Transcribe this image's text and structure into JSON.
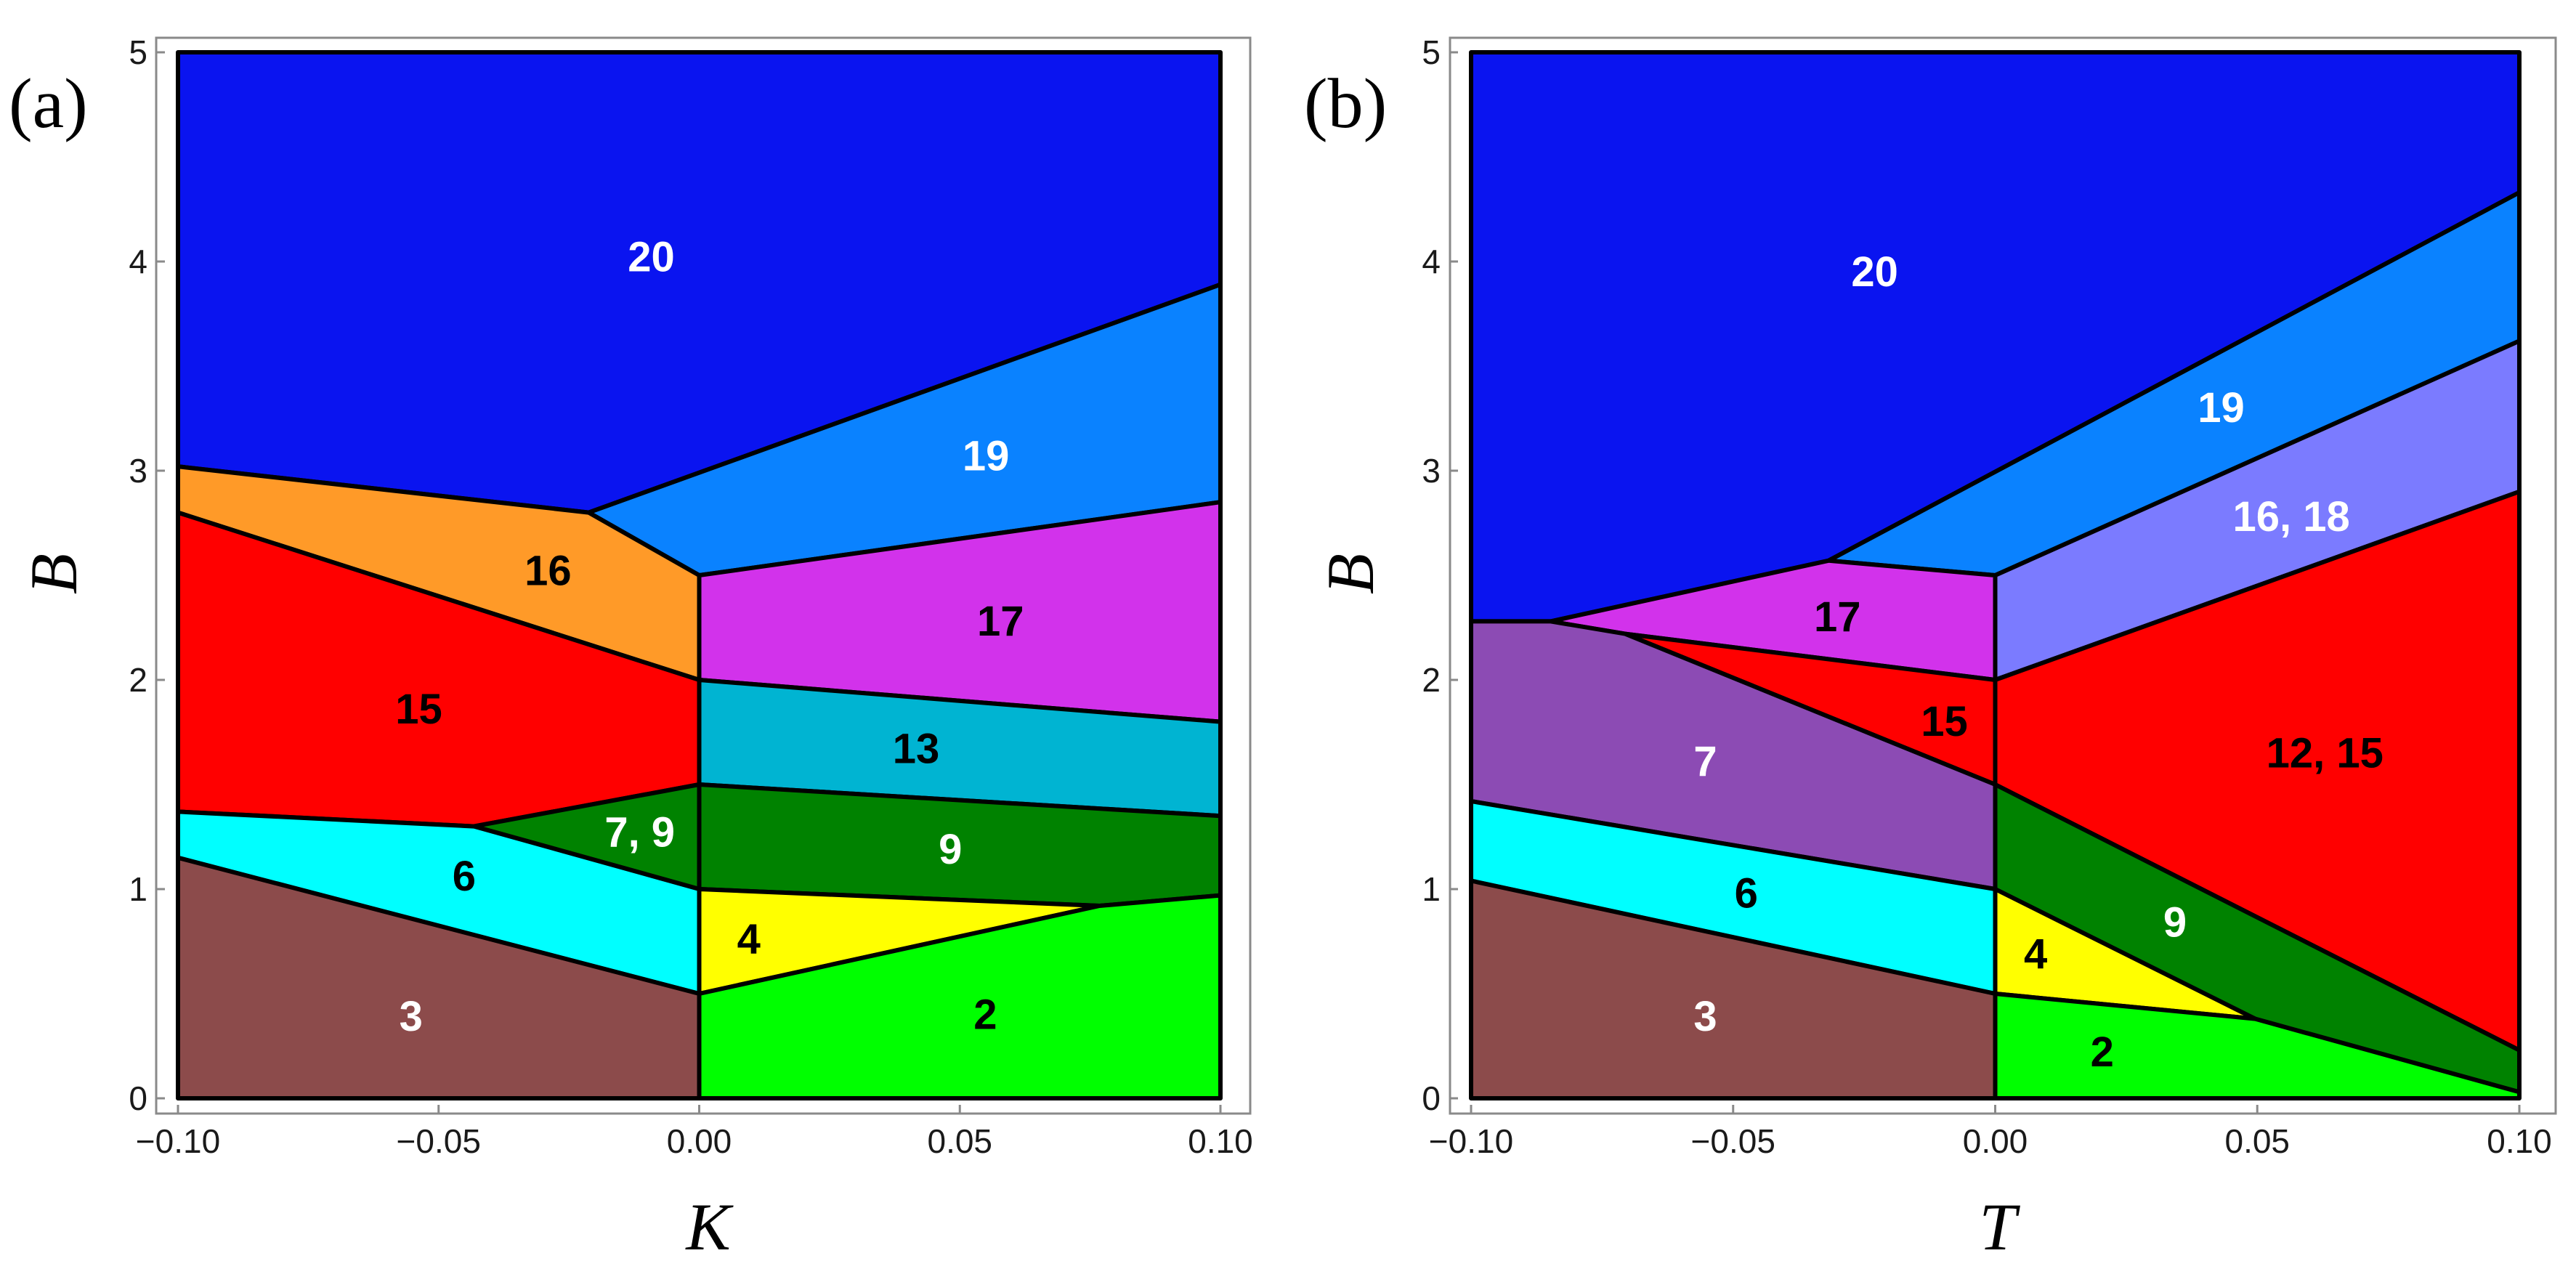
{
  "chart_data": [
    {
      "type": "phase_diagram",
      "panel_tag": "(a)",
      "xlabel": "K",
      "ylabel": "B",
      "xlim": [
        -0.1,
        0.1
      ],
      "ylim": [
        0,
        5
      ],
      "xticks": [
        -0.1,
        -0.05,
        0.0,
        0.05,
        0.1
      ],
      "xtick_labels": [
        "−0.10",
        "−0.05",
        "0.00",
        "0.05",
        "0.10"
      ],
      "yticks": [
        0,
        1,
        2,
        3,
        4,
        5
      ],
      "ytick_labels": [
        "0",
        "1",
        "2",
        "3",
        "4",
        "5"
      ],
      "regions": [
        {
          "label": "20",
          "color": "#0a14f0",
          "text_color": "#ffffff",
          "label_at": [
            -0.0092,
            4.02
          ],
          "polygon": [
            [
              -0.1,
              5
            ],
            [
              0.1,
              5
            ],
            [
              0.1,
              3.89
            ],
            [
              -0.0212,
              2.8
            ],
            [
              -0.1,
              3.02
            ]
          ]
        },
        {
          "label": "19",
          "color": "#0a82ff",
          "text_color": "#ffffff",
          "label_at": [
            0.055,
            3.07
          ],
          "polygon": [
            [
              -0.0212,
              2.8
            ],
            [
              0.1,
              3.89
            ],
            [
              0.1,
              2.85
            ],
            [
              0.0,
              2.5
            ]
          ]
        },
        {
          "label": "16",
          "color": "#ff9a28",
          "text_color": "#000000",
          "label_at": [
            -0.029,
            2.52
          ],
          "polygon": [
            [
              -0.1,
              3.02
            ],
            [
              -0.0212,
              2.8
            ],
            [
              0.0,
              2.5
            ],
            [
              0.0,
              2.0
            ],
            [
              -0.1,
              2.8
            ]
          ]
        },
        {
          "label": "17",
          "color": "#d232eb",
          "text_color": "#000000",
          "label_at": [
            0.0578,
            2.28
          ],
          "polygon": [
            [
              0.0,
              2.5
            ],
            [
              0.1,
              2.85
            ],
            [
              0.1,
              1.8
            ],
            [
              0.0,
              2.0
            ]
          ]
        },
        {
          "label": "15",
          "color": "#ff0000",
          "text_color": "#000000",
          "label_at": [
            -0.0538,
            1.86
          ],
          "polygon": [
            [
              -0.1,
              2.8
            ],
            [
              0.0,
              2.0
            ],
            [
              0.0,
              1.5
            ],
            [
              -0.0432,
              1.3
            ],
            [
              -0.1,
              1.37
            ]
          ]
        },
        {
          "label": "13",
          "color": "#00b4d2",
          "text_color": "#000000",
          "label_at": [
            0.0416,
            1.67
          ],
          "polygon": [
            [
              0.0,
              2.0
            ],
            [
              0.1,
              1.8
            ],
            [
              0.1,
              1.35
            ],
            [
              0.0,
              1.5
            ]
          ]
        },
        {
          "label": "7, 9",
          "color": "#008200",
          "text_color": "#ffffff",
          "label_at": [
            -0.0114,
            1.27
          ],
          "polygon": [
            [
              -0.0432,
              1.3
            ],
            [
              0.0,
              1.5
            ],
            [
              0.0,
              1.0
            ]
          ]
        },
        {
          "label": "9",
          "color": "#008200",
          "text_color": "#ffffff",
          "label_at": [
            0.0482,
            1.19
          ],
          "polygon": [
            [
              0.0,
              1.5
            ],
            [
              0.1,
              1.35
            ],
            [
              0.1,
              0.97
            ],
            [
              0.0768,
              0.92
            ],
            [
              0.0,
              1.0
            ]
          ]
        },
        {
          "label": "6",
          "color": "#00ffff",
          "text_color": "#000000",
          "label_at": [
            -0.0451,
            1.06
          ],
          "polygon": [
            [
              -0.1,
              1.37
            ],
            [
              -0.0432,
              1.3
            ],
            [
              0.0,
              1.0
            ],
            [
              0.0,
              0.5
            ],
            [
              -0.1,
              1.15
            ]
          ]
        },
        {
          "label": "4",
          "color": "#ffff00",
          "text_color": "#000000",
          "label_at": [
            0.0095,
            0.76
          ],
          "polygon": [
            [
              0.0,
              1.0
            ],
            [
              0.0768,
              0.92
            ],
            [
              0.0,
              0.5
            ]
          ]
        },
        {
          "label": "3",
          "color": "#8c4b4b",
          "text_color": "#ffffff",
          "label_at": [
            -0.0553,
            0.39
          ],
          "polygon": [
            [
              -0.1,
              1.15
            ],
            [
              0.0,
              0.5
            ],
            [
              0.0,
              0.0
            ],
            [
              -0.1,
              0.0
            ]
          ]
        },
        {
          "label": "2",
          "color": "#00ff00",
          "text_color": "#000000",
          "label_at": [
            0.0549,
            0.4
          ],
          "polygon": [
            [
              0.0,
              0.5
            ],
            [
              0.0768,
              0.92
            ],
            [
              0.1,
              0.97
            ],
            [
              0.1,
              0.0
            ],
            [
              0.0,
              0.0
            ]
          ]
        }
      ]
    },
    {
      "type": "phase_diagram",
      "panel_tag": "(b)",
      "xlabel": "T",
      "ylabel": "B",
      "xlim": [
        -0.1,
        0.1
      ],
      "ylim": [
        0,
        5
      ],
      "xticks": [
        -0.1,
        -0.05,
        0.0,
        0.05,
        0.1
      ],
      "xtick_labels": [
        "−0.10",
        "−0.05",
        "0.00",
        "0.05",
        "0.10"
      ],
      "yticks": [
        0,
        1,
        2,
        3,
        4,
        5
      ],
      "ytick_labels": [
        "0",
        "1",
        "2",
        "3",
        "4",
        "5"
      ],
      "regions": [
        {
          "label": "20",
          "color": "#0a14f0",
          "text_color": "#ffffff",
          "label_at": [
            -0.023,
            3.95
          ],
          "polygon": [
            [
              -0.1,
              5
            ],
            [
              0.1,
              5
            ],
            [
              0.1,
              4.33
            ],
            [
              -0.0318,
              2.57
            ],
            [
              -0.0848,
              2.28
            ],
            [
              -0.1,
              2.28
            ]
          ]
        },
        {
          "label": "19",
          "color": "#0a82ff",
          "text_color": "#ffffff",
          "label_at": [
            0.0431,
            3.3
          ],
          "polygon": [
            [
              -0.0318,
              2.57
            ],
            [
              0.1,
              4.33
            ],
            [
              0.1,
              3.62
            ],
            [
              0.0,
              2.5
            ]
          ]
        },
        {
          "label": "16, 18",
          "color": "#7b7bff",
          "text_color": "#ffffff",
          "label_at": [
            0.0565,
            2.78
          ],
          "polygon": [
            [
              0.0,
              2.5
            ],
            [
              0.1,
              3.62
            ],
            [
              0.1,
              2.9
            ],
            [
              0.0,
              2.0
            ]
          ]
        },
        {
          "label": "17",
          "color": "#d232eb",
          "text_color": "#000000",
          "label_at": [
            -0.0301,
            2.3
          ],
          "polygon": [
            [
              -0.0848,
              2.28
            ],
            [
              -0.0318,
              2.57
            ],
            [
              0.0,
              2.5
            ],
            [
              0.0,
              2.0
            ],
            [
              -0.0706,
              2.22
            ]
          ]
        },
        {
          "label": "15",
          "color": "#ff0000",
          "text_color": "#000000",
          "label_at": [
            -0.0097,
            1.8
          ],
          "polygon": [
            [
              -0.0706,
              2.22
            ],
            [
              0.0,
              2.0
            ],
            [
              0.0,
              1.5
            ]
          ]
        },
        {
          "label": "12, 15",
          "color": "#ff0000",
          "text_color": "#000000",
          "label_at": [
            0.0629,
            1.65
          ],
          "polygon": [
            [
              0.0,
              2.0
            ],
            [
              0.1,
              2.9
            ],
            [
              0.1,
              0.23
            ],
            [
              0.0,
              1.5
            ]
          ]
        },
        {
          "label": "7",
          "color": "#8c4bb4",
          "text_color": "#ffffff",
          "label_at": [
            -0.0553,
            1.61
          ],
          "polygon": [
            [
              -0.1,
              2.28
            ],
            [
              -0.0848,
              2.28
            ],
            [
              -0.0706,
              2.22
            ],
            [
              0.0,
              1.5
            ],
            [
              0.0,
              1.0
            ],
            [
              -0.1,
              1.42
            ]
          ]
        },
        {
          "label": "9",
          "color": "#008200",
          "text_color": "#ffffff",
          "label_at": [
            0.0343,
            0.84
          ],
          "polygon": [
            [
              0.0,
              1.5
            ],
            [
              0.1,
              0.23
            ],
            [
              0.1,
              0.03
            ],
            [
              0.0496,
              0.38
            ],
            [
              0.0,
              1.0
            ]
          ]
        },
        {
          "label": "6",
          "color": "#00ffff",
          "text_color": "#000000",
          "label_at": [
            -0.0475,
            0.98
          ],
          "polygon": [
            [
              -0.1,
              1.42
            ],
            [
              0.0,
              1.0
            ],
            [
              0.0,
              0.5
            ],
            [
              -0.1,
              1.04
            ]
          ]
        },
        {
          "label": "4",
          "color": "#ffff00",
          "text_color": "#000000",
          "label_at": [
            0.0077,
            0.69
          ],
          "polygon": [
            [
              0.0,
              1.0
            ],
            [
              0.0496,
              0.38
            ],
            [
              0.0,
              0.5
            ]
          ]
        },
        {
          "label": "3",
          "color": "#8c4b4b",
          "text_color": "#ffffff",
          "label_at": [
            -0.0553,
            0.39
          ],
          "polygon": [
            [
              -0.1,
              1.04
            ],
            [
              0.0,
              0.5
            ],
            [
              0.0,
              0.0
            ],
            [
              -0.1,
              0.0
            ]
          ]
        },
        {
          "label": "2",
          "color": "#00ff00",
          "text_color": "#000000",
          "label_at": [
            0.0204,
            0.22
          ],
          "polygon": [
            [
              0.0,
              0.5
            ],
            [
              0.0496,
              0.38
            ],
            [
              0.1,
              0.03
            ],
            [
              0.1,
              0.0
            ],
            [
              0.0,
              0.0
            ]
          ]
        }
      ]
    }
  ]
}
